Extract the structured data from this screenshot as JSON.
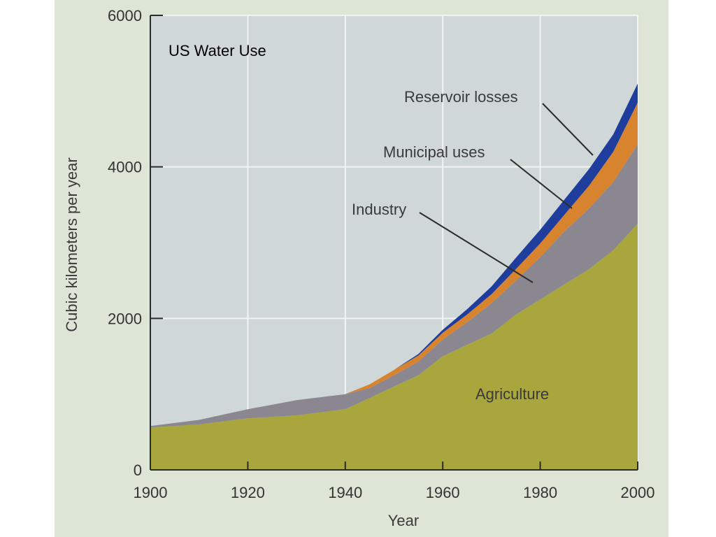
{
  "chart_data": {
    "type": "area",
    "stacked": true,
    "title": "US Water Use",
    "xlabel": "Year",
    "ylabel": "Cubic kilometers per year",
    "xlim": [
      1900,
      2000
    ],
    "ylim": [
      0,
      6000
    ],
    "xticks": [
      1900,
      1920,
      1940,
      1960,
      1980,
      2000
    ],
    "yticks": [
      0,
      2000,
      4000,
      6000
    ],
    "grid": true,
    "x": [
      1900,
      1910,
      1920,
      1930,
      1940,
      1945,
      1950,
      1955,
      1960,
      1965,
      1970,
      1975,
      1980,
      1985,
      1990,
      1995,
      2000
    ],
    "series": [
      {
        "name": "Agriculture",
        "color": "#a9a63e",
        "values": [
          560,
          600,
          680,
          720,
          800,
          950,
          1100,
          1250,
          1500,
          1650,
          1800,
          2050,
          2250,
          2450,
          2650,
          2900,
          3250
        ]
      },
      {
        "name": "Industry",
        "color": "#8a8790",
        "values": [
          20,
          60,
          120,
          200,
          200,
          130,
          150,
          180,
          220,
          300,
          400,
          450,
          560,
          700,
          800,
          900,
          1050
        ]
      },
      {
        "name": "Municipal uses",
        "color": "#d8832e",
        "values": [
          0,
          0,
          0,
          0,
          0,
          50,
          70,
          80,
          90,
          100,
          120,
          150,
          180,
          220,
          300,
          400,
          550
        ]
      },
      {
        "name": "Reservoir losses",
        "color": "#1f3d9c",
        "values": [
          0,
          0,
          0,
          0,
          0,
          0,
          0,
          20,
          40,
          70,
          100,
          150,
          180,
          200,
          220,
          230,
          250
        ]
      }
    ],
    "annotations": [
      "Reservoir losses",
      "Municipal uses",
      "Industry",
      "Agriculture"
    ]
  },
  "colors": {
    "plot_background": "#cfd7d8",
    "frame_background": "#dde6d6",
    "grid": "#f2f4f2",
    "axis": "#2b2b2b",
    "leader_line": "#2b2b2b"
  }
}
